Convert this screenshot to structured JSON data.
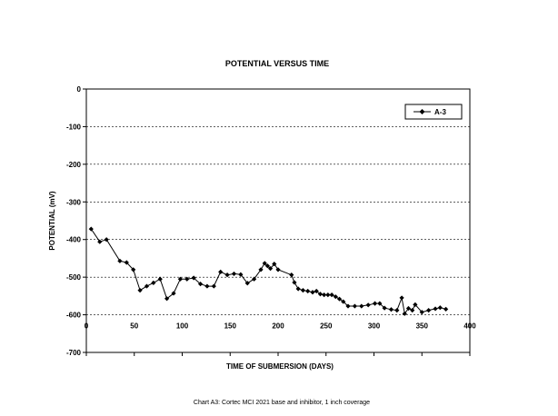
{
  "chart_data": {
    "type": "line",
    "title": "POTENTIAL VERSUS TIME",
    "xlabel": "TIME OF SUBMERSION (DAYS)",
    "ylabel": "POTENTIAL (mV)",
    "xlim": [
      0,
      400
    ],
    "ylim": [
      -700,
      0
    ],
    "xticks": [
      0,
      50,
      100,
      150,
      200,
      250,
      300,
      350,
      400
    ],
    "yticks": [
      0,
      -100,
      -200,
      -300,
      -400,
      -500,
      -600,
      -700
    ],
    "grid": "horizontal",
    "legend_position": "top-right",
    "series": [
      {
        "name": "A-3",
        "color": "#000000",
        "marker": "diamond",
        "points": [
          [
            5,
            -372
          ],
          [
            14,
            -406
          ],
          [
            21,
            -400
          ],
          [
            35,
            -457
          ],
          [
            42,
            -461
          ],
          [
            49,
            -480
          ],
          [
            56,
            -535
          ],
          [
            63,
            -524
          ],
          [
            70,
            -515
          ],
          [
            77,
            -505
          ],
          [
            84,
            -557
          ],
          [
            91,
            -543
          ],
          [
            98,
            -505
          ],
          [
            105,
            -505
          ],
          [
            112,
            -502
          ],
          [
            119,
            -518
          ],
          [
            126,
            -524
          ],
          [
            133,
            -524
          ],
          [
            140,
            -486
          ],
          [
            147,
            -494
          ],
          [
            154,
            -491
          ],
          [
            161,
            -493
          ],
          [
            168,
            -516
          ],
          [
            175,
            -505
          ],
          [
            182,
            -480
          ],
          [
            186,
            -463
          ],
          [
            189,
            -470
          ],
          [
            192,
            -477
          ],
          [
            196,
            -465
          ],
          [
            200,
            -480
          ],
          [
            214,
            -494
          ],
          [
            217,
            -514
          ],
          [
            221,
            -531
          ],
          [
            226,
            -535
          ],
          [
            231,
            -537
          ],
          [
            236,
            -540
          ],
          [
            240,
            -537
          ],
          [
            244,
            -545
          ],
          [
            248,
            -547
          ],
          [
            252,
            -547
          ],
          [
            256,
            -547
          ],
          [
            260,
            -552
          ],
          [
            264,
            -558
          ],
          [
            268,
            -565
          ],
          [
            273,
            -577
          ],
          [
            280,
            -577
          ],
          [
            287,
            -577
          ],
          [
            294,
            -574
          ],
          [
            301,
            -570
          ],
          [
            306,
            -570
          ],
          [
            311,
            -582
          ],
          [
            318,
            -586
          ],
          [
            324,
            -588
          ],
          [
            329,
            -555
          ],
          [
            332,
            -597
          ],
          [
            336,
            -583
          ],
          [
            340,
            -588
          ],
          [
            343,
            -573
          ],
          [
            350,
            -593
          ],
          [
            357,
            -588
          ],
          [
            364,
            -584
          ],
          [
            369,
            -581
          ],
          [
            375,
            -585
          ]
        ]
      }
    ]
  },
  "caption": "Chart A3: Cortec MCI 2021 base and inhibitor, 1 inch coverage"
}
